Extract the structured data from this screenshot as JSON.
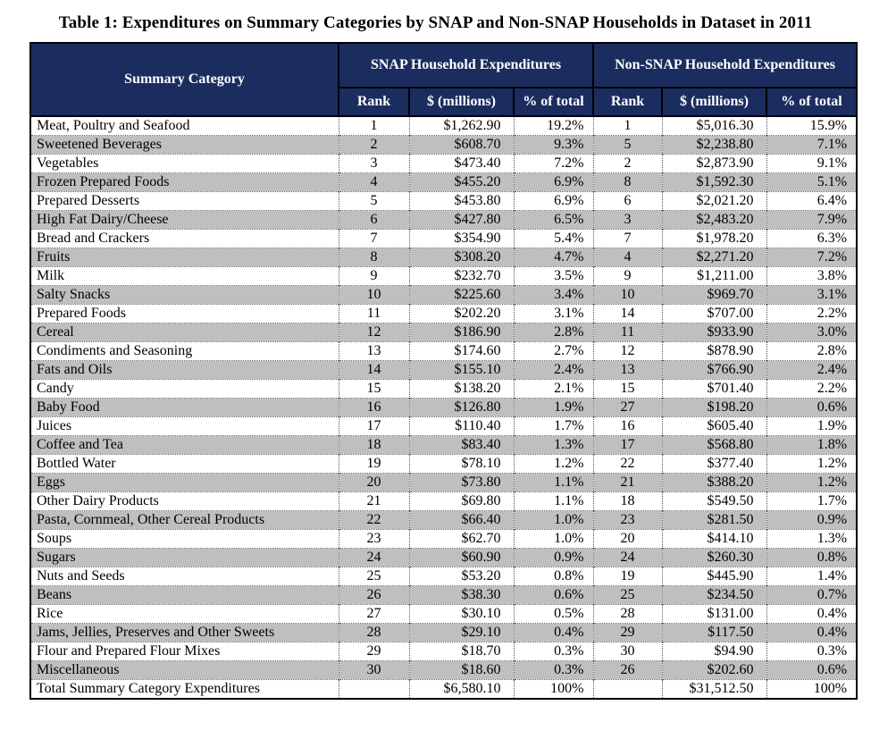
{
  "title": "Table 1: Expenditures on Summary Categories by SNAP and Non-SNAP Households in Dataset in 2011",
  "colors": {
    "header_bg": "#1b2d5f",
    "header_text": "#ffffff",
    "stripe": "#bfbfbf",
    "border": "#000000"
  },
  "table": {
    "header": {
      "summary_category": "Summary Category",
      "snap_group": "SNAP Household Expenditures",
      "non_snap_group": "Non-SNAP Household Expenditures",
      "sub_columns": [
        "Rank",
        "$ (millions)",
        "% of total",
        "Rank",
        "$ (millions)",
        "% of total"
      ]
    },
    "rows": [
      [
        "Meat, Poultry and Seafood",
        "1",
        "$1,262.90",
        "19.2%",
        "1",
        "$5,016.30",
        "15.9%"
      ],
      [
        "Sweetened Beverages",
        "2",
        "$608.70",
        "9.3%",
        "5",
        "$2,238.80",
        "7.1%"
      ],
      [
        "Vegetables",
        "3",
        "$473.40",
        "7.2%",
        "2",
        "$2,873.90",
        "9.1%"
      ],
      [
        "Frozen Prepared Foods",
        "4",
        "$455.20",
        "6.9%",
        "8",
        "$1,592.30",
        "5.1%"
      ],
      [
        "Prepared Desserts",
        "5",
        "$453.80",
        "6.9%",
        "6",
        "$2,021.20",
        "6.4%"
      ],
      [
        "High Fat Dairy/Cheese",
        "6",
        "$427.80",
        "6.5%",
        "3",
        "$2,483.20",
        "7.9%"
      ],
      [
        "Bread and Crackers",
        "7",
        "$354.90",
        "5.4%",
        "7",
        "$1,978.20",
        "6.3%"
      ],
      [
        "Fruits",
        "8",
        "$308.20",
        "4.7%",
        "4",
        "$2,271.20",
        "7.2%"
      ],
      [
        "Milk",
        "9",
        "$232.70",
        "3.5%",
        "9",
        "$1,211.00",
        "3.8%"
      ],
      [
        "Salty Snacks",
        "10",
        "$225.60",
        "3.4%",
        "10",
        "$969.70",
        "3.1%"
      ],
      [
        "Prepared Foods",
        "11",
        "$202.20",
        "3.1%",
        "14",
        "$707.00",
        "2.2%"
      ],
      [
        "Cereal",
        "12",
        "$186.90",
        "2.8%",
        "11",
        "$933.90",
        "3.0%"
      ],
      [
        "Condiments and Seasoning",
        "13",
        "$174.60",
        "2.7%",
        "12",
        "$878.90",
        "2.8%"
      ],
      [
        "Fats and Oils",
        "14",
        "$155.10",
        "2.4%",
        "13",
        "$766.90",
        "2.4%"
      ],
      [
        "Candy",
        "15",
        "$138.20",
        "2.1%",
        "15",
        "$701.40",
        "2.2%"
      ],
      [
        "Baby Food",
        "16",
        "$126.80",
        "1.9%",
        "27",
        "$198.20",
        "0.6%"
      ],
      [
        "Juices",
        "17",
        "$110.40",
        "1.7%",
        "16",
        "$605.40",
        "1.9%"
      ],
      [
        "Coffee and Tea",
        "18",
        "$83.40",
        "1.3%",
        "17",
        "$568.80",
        "1.8%"
      ],
      [
        "Bottled Water",
        "19",
        "$78.10",
        "1.2%",
        "22",
        "$377.40",
        "1.2%"
      ],
      [
        "Eggs",
        "20",
        "$73.80",
        "1.1%",
        "21",
        "$388.20",
        "1.2%"
      ],
      [
        "Other Dairy Products",
        "21",
        "$69.80",
        "1.1%",
        "18",
        "$549.50",
        "1.7%"
      ],
      [
        "Pasta, Cornmeal, Other Cereal Products",
        "22",
        "$66.40",
        "1.0%",
        "23",
        "$281.50",
        "0.9%"
      ],
      [
        "Soups",
        "23",
        "$62.70",
        "1.0%",
        "20",
        "$414.10",
        "1.3%"
      ],
      [
        "Sugars",
        "24",
        "$60.90",
        "0.9%",
        "24",
        "$260.30",
        "0.8%"
      ],
      [
        "Nuts and Seeds",
        "25",
        "$53.20",
        "0.8%",
        "19",
        "$445.90",
        "1.4%"
      ],
      [
        "Beans",
        "26",
        "$38.30",
        "0.6%",
        "25",
        "$234.50",
        "0.7%"
      ],
      [
        "Rice",
        "27",
        "$30.10",
        "0.5%",
        "28",
        "$131.00",
        "0.4%"
      ],
      [
        "Jams, Jellies, Preserves and Other Sweets",
        "28",
        "$29.10",
        "0.4%",
        "29",
        "$117.50",
        "0.4%"
      ],
      [
        "Flour and Prepared Flour Mixes",
        "29",
        "$18.70",
        "0.3%",
        "30",
        "$94.90",
        "0.3%"
      ],
      [
        "Miscellaneous",
        "30",
        "$18.60",
        "0.3%",
        "26",
        "$202.60",
        "0.6%"
      ]
    ],
    "total_row": [
      "Total Summary Category Expenditures",
      "",
      "$6,580.10",
      "100%",
      "",
      "$31,512.50",
      "100%"
    ]
  }
}
